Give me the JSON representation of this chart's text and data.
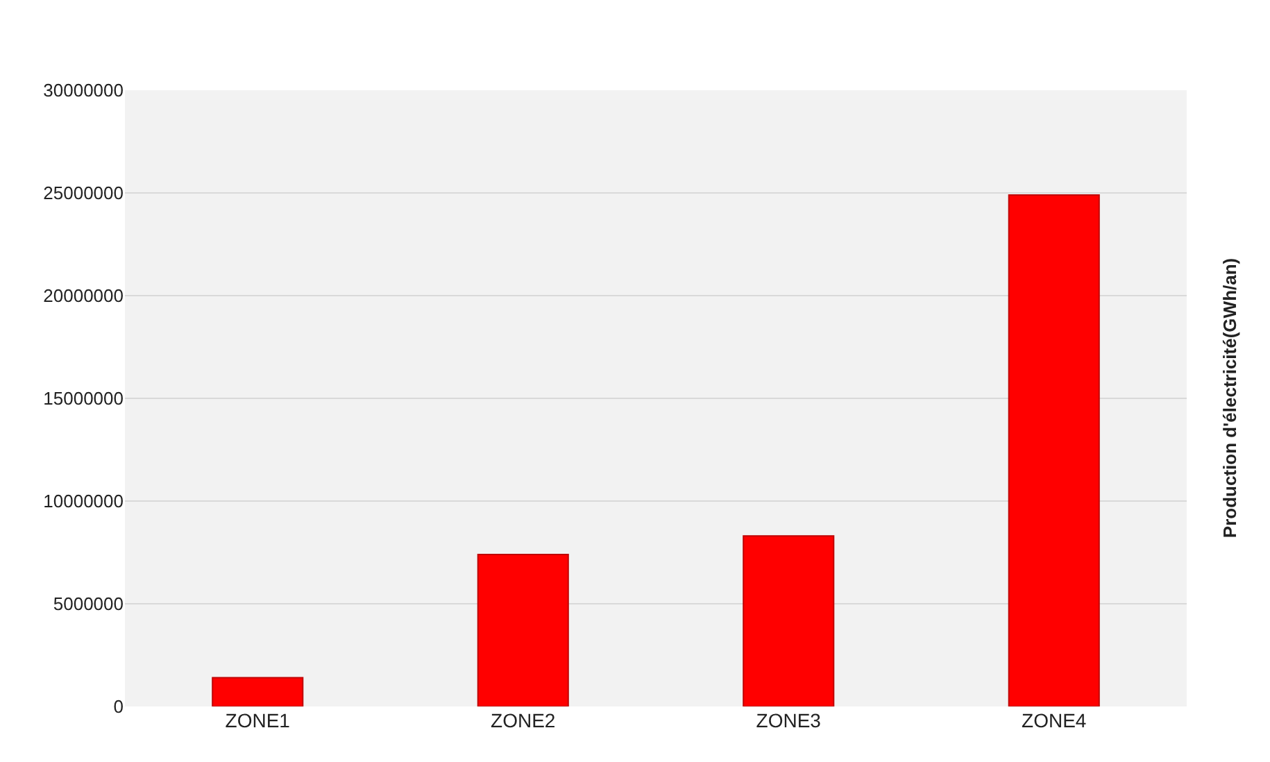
{
  "chart_data": {
    "type": "bar",
    "ylabel": "Production d'électricité(GWh/an)",
    "categories": [
      "ZONE1",
      "ZONE2",
      "ZONE3",
      "ZONE4"
    ],
    "values": [
      1400000,
      7400000,
      8300000,
      24900000
    ],
    "color": "#ff0000",
    "ylim": [
      0,
      30000000
    ],
    "yticks": [
      0,
      5000000,
      10000000,
      15000000,
      20000000,
      25000000,
      30000000
    ],
    "grid": "y"
  }
}
